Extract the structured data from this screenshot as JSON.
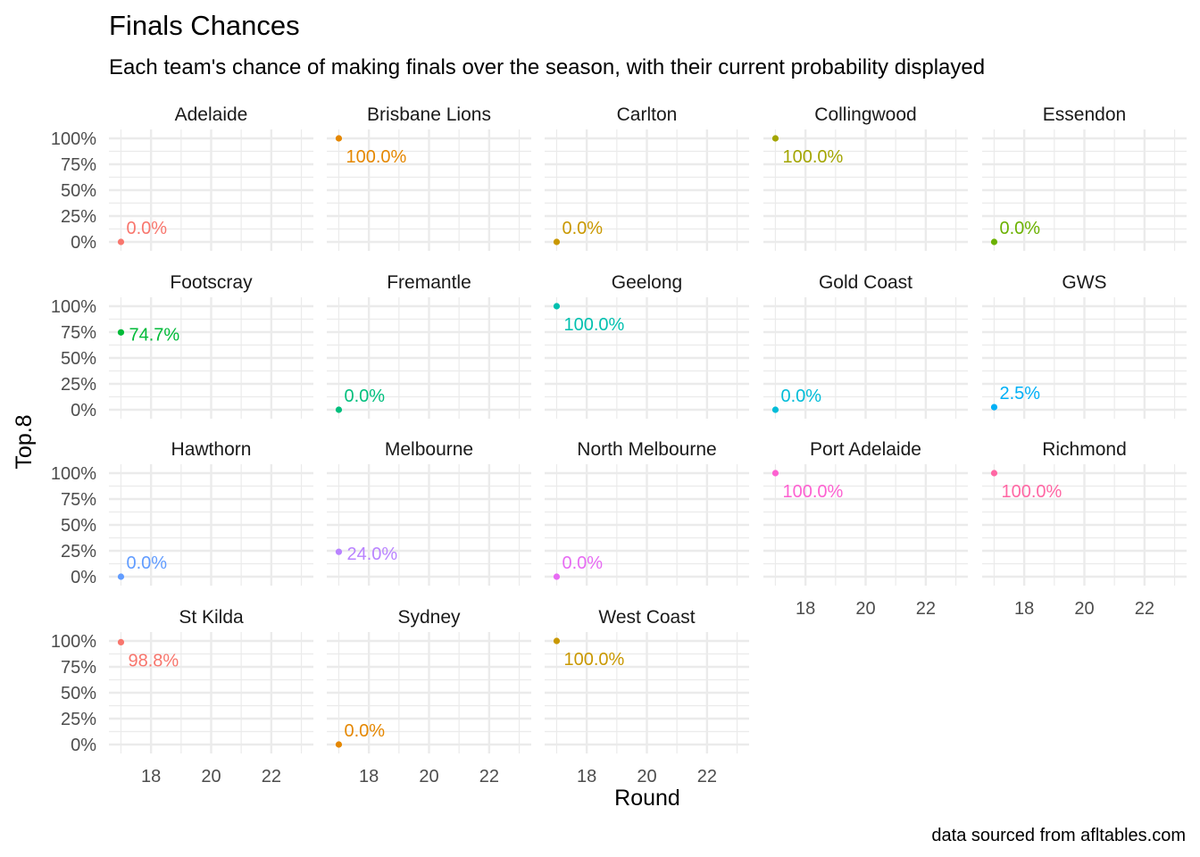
{
  "chart_data": {
    "type": "scatter",
    "title": "Finals Chances",
    "subtitle": "Each team's chance of making finals over the season, with their current probability displayed",
    "xlabel": "Round",
    "ylabel": "Top.8",
    "caption": "data sourced from afltables.com",
    "xlim": [
      16.6,
      23.4
    ],
    "ylim": [
      0,
      1
    ],
    "x_ticks": [
      18,
      20,
      22
    ],
    "y_ticks": [
      0,
      0.25,
      0.5,
      0.75,
      1
    ],
    "y_tick_labels": [
      "0%",
      "25%",
      "50%",
      "75%",
      "100%"
    ],
    "grid": true,
    "legend": "none",
    "facets": [
      {
        "team": "Adelaide",
        "round": 17,
        "value": 0.0,
        "label": "0.0%",
        "color": "#F8766D"
      },
      {
        "team": "Brisbane Lions",
        "round": 17,
        "value": 1.0,
        "label": "100.0%",
        "color": "#E58700"
      },
      {
        "team": "Carlton",
        "round": 17,
        "value": 0.0,
        "label": "0.0%",
        "color": "#C99800"
      },
      {
        "team": "Collingwood",
        "round": 17,
        "value": 1.0,
        "label": "100.0%",
        "color": "#A3A500"
      },
      {
        "team": "Essendon",
        "round": 17,
        "value": 0.0,
        "label": "0.0%",
        "color": "#6BB100"
      },
      {
        "team": "Footscray",
        "round": 17,
        "value": 0.747,
        "label": "74.7%",
        "color": "#00BA38"
      },
      {
        "team": "Fremantle",
        "round": 17,
        "value": 0.0,
        "label": "0.0%",
        "color": "#00BF7D"
      },
      {
        "team": "Geelong",
        "round": 17,
        "value": 1.0,
        "label": "100.0%",
        "color": "#00C0AF"
      },
      {
        "team": "Gold Coast",
        "round": 17,
        "value": 0.0,
        "label": "0.0%",
        "color": "#00BCD8"
      },
      {
        "team": "GWS",
        "round": 17,
        "value": 0.025,
        "label": "2.5%",
        "color": "#00B0F6"
      },
      {
        "team": "Hawthorn",
        "round": 17,
        "value": 0.0,
        "label": "0.0%",
        "color": "#619CFF"
      },
      {
        "team": "Melbourne",
        "round": 17,
        "value": 0.24,
        "label": "24.0%",
        "color": "#B983FF"
      },
      {
        "team": "North Melbourne",
        "round": 17,
        "value": 0.0,
        "label": "0.0%",
        "color": "#E76BF3"
      },
      {
        "team": "Port Adelaide",
        "round": 17,
        "value": 1.0,
        "label": "100.0%",
        "color": "#FD61D1"
      },
      {
        "team": "Richmond",
        "round": 17,
        "value": 1.0,
        "label": "100.0%",
        "color": "#FF67A4"
      },
      {
        "team": "St Kilda",
        "round": 17,
        "value": 0.988,
        "label": "98.8%",
        "color": "#F8766D"
      },
      {
        "team": "Sydney",
        "round": 17,
        "value": 0.0,
        "label": "0.0%",
        "color": "#E58700"
      },
      {
        "team": "West Coast",
        "round": 17,
        "value": 1.0,
        "label": "100.0%",
        "color": "#C99800"
      }
    ]
  }
}
